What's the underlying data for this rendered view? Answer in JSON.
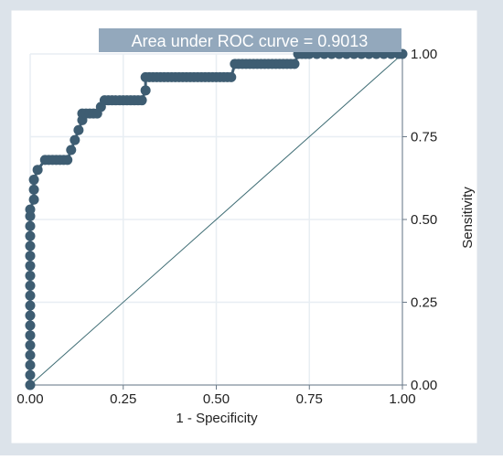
{
  "colors": {
    "background": "#DCE3EA",
    "plot_area": "#FFFFFF",
    "grid": "#E8EEF3",
    "axis": "#6B7A89",
    "curve": "#3E5D72",
    "reference_line": "#3E6C74",
    "annotation_bg": "#93A8BC",
    "annotation_text": "#FFFFFF",
    "text": "#222222"
  },
  "chart_data": {
    "type": "line",
    "title": "",
    "annotation": "Area under ROC curve = 0.9013",
    "xlabel": "1 - Specificity",
    "ylabel": "Sensitivity",
    "xlim": [
      0,
      1
    ],
    "ylim": [
      0,
      1
    ],
    "x_ticks": [
      0,
      0.25,
      0.5,
      0.75,
      1
    ],
    "y_ticks": [
      0,
      0.25,
      0.5,
      0.75,
      1
    ],
    "x_tick_labels": [
      "0.00",
      "0.25",
      "0.50",
      "0.75",
      "1.00"
    ],
    "y_tick_labels": [
      "0.00",
      "0.25",
      "0.50",
      "0.75",
      "1.00"
    ],
    "grid": true,
    "y_axis_position": "right",
    "series": [
      {
        "x": [
          0,
          0,
          0,
          0,
          0,
          0,
          0,
          0,
          0,
          0,
          0,
          0,
          0,
          0,
          0,
          0,
          0,
          0,
          0,
          0.01,
          0.01,
          0.01,
          0.02,
          0.04,
          0.05,
          0.06,
          0.07,
          0.08,
          0.09,
          0.1,
          0.11,
          0.12,
          0.13,
          0.14,
          0.14,
          0.15,
          0.16,
          0.17,
          0.18,
          0.19,
          0.2,
          0.21,
          0.22,
          0.23,
          0.24,
          0.25,
          0.26,
          0.27,
          0.28,
          0.29,
          0.3,
          0.31,
          0.31,
          0.32,
          0.33,
          0.34,
          0.35,
          0.36,
          0.37,
          0.38,
          0.39,
          0.4,
          0.41,
          0.42,
          0.43,
          0.44,
          0.45,
          0.46,
          0.47,
          0.48,
          0.49,
          0.5,
          0.51,
          0.52,
          0.53,
          0.54,
          0.55,
          0.56,
          0.57,
          0.58,
          0.59,
          0.6,
          0.61,
          0.62,
          0.63,
          0.64,
          0.65,
          0.66,
          0.67,
          0.68,
          0.69,
          0.7,
          0.71,
          0.72,
          0.73,
          0.74,
          0.75,
          0.77,
          0.79,
          0.81,
          0.83,
          0.85,
          0.87,
          0.89,
          0.91,
          0.93,
          0.95,
          0.97,
          0.99,
          1.0
        ],
        "y": [
          0,
          0.03,
          0.06,
          0.09,
          0.12,
          0.15,
          0.18,
          0.21,
          0.24,
          0.27,
          0.3,
          0.33,
          0.36,
          0.39,
          0.42,
          0.45,
          0.48,
          0.51,
          0.53,
          0.56,
          0.59,
          0.62,
          0.65,
          0.68,
          0.68,
          0.68,
          0.68,
          0.68,
          0.68,
          0.68,
          0.71,
          0.74,
          0.77,
          0.8,
          0.82,
          0.82,
          0.82,
          0.82,
          0.82,
          0.84,
          0.86,
          0.86,
          0.86,
          0.86,
          0.86,
          0.86,
          0.86,
          0.86,
          0.86,
          0.86,
          0.86,
          0.89,
          0.93,
          0.93,
          0.93,
          0.93,
          0.93,
          0.93,
          0.93,
          0.93,
          0.93,
          0.93,
          0.93,
          0.93,
          0.93,
          0.93,
          0.93,
          0.93,
          0.93,
          0.93,
          0.93,
          0.93,
          0.93,
          0.93,
          0.93,
          0.93,
          0.97,
          0.97,
          0.97,
          0.97,
          0.97,
          0.97,
          0.97,
          0.97,
          0.97,
          0.97,
          0.97,
          0.97,
          0.97,
          0.97,
          0.97,
          0.97,
          0.97,
          1.0,
          1.0,
          1.0,
          1.0,
          1.0,
          1.0,
          1.0,
          1.0,
          1.0,
          1.0,
          1.0,
          1.0,
          1.0,
          1.0,
          1.0,
          1.0,
          1.0
        ]
      },
      {
        "x": [
          0,
          1
        ],
        "y": [
          0,
          1
        ]
      }
    ]
  }
}
